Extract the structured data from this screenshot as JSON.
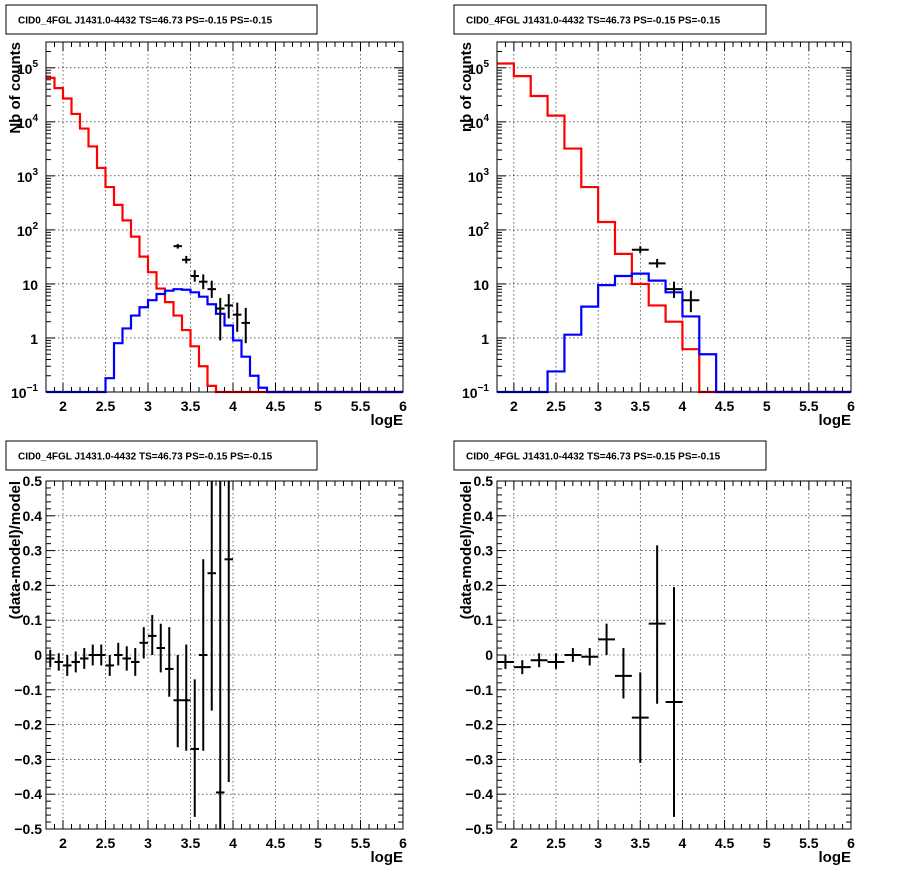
{
  "chart_data": [
    {
      "type": "line",
      "title": "CID0_4FGL J1431.0-4432 TS=46.73 PS=-0.15 PS=-0.15",
      "xlabel": "logE",
      "ylabel": "Nb of counts",
      "xscale": "linear",
      "yscale": "log",
      "xlim": [
        1.8,
        6.0
      ],
      "ylim": [
        0.1,
        300000
      ],
      "grid": true,
      "xticks": [
        {
          "v": 2,
          "label": "2"
        },
        {
          "v": 2.5,
          "label": "2.5"
        },
        {
          "v": 3,
          "label": "3"
        },
        {
          "v": 3.5,
          "label": "3.5"
        },
        {
          "v": 4,
          "label": "4"
        },
        {
          "v": 4.5,
          "label": "4.5"
        },
        {
          "v": 5,
          "label": "5"
        },
        {
          "v": 5.5,
          "label": "5.5"
        },
        {
          "v": 6,
          "label": "6"
        }
      ],
      "yticks": [
        {
          "v": 0.1,
          "base": "10",
          "exp": "−1"
        },
        {
          "v": 1,
          "base": "1",
          "exp": ""
        },
        {
          "v": 10,
          "base": "10",
          "exp": ""
        },
        {
          "v": 100,
          "base": "10",
          "exp": "2"
        },
        {
          "v": 1000,
          "base": "10",
          "exp": "3"
        },
        {
          "v": 10000,
          "base": "10",
          "exp": "4"
        },
        {
          "v": 100000,
          "base": "10",
          "exp": "5"
        }
      ],
      "series": [
        {
          "kind": "step",
          "color": "#ff0000",
          "edges": [
            1.8,
            1.9,
            2.0,
            2.1,
            2.2,
            2.3,
            2.4,
            2.5,
            2.6,
            2.7,
            2.8,
            2.9,
            3.0,
            3.1,
            3.2,
            3.3,
            3.4,
            3.5,
            3.6,
            3.7,
            3.8,
            3.9,
            4.0,
            4.1,
            4.2,
            4.3,
            4.4,
            4.5,
            6.0
          ],
          "values": [
            65000,
            42000,
            27000,
            14000,
            7500,
            3500,
            1400,
            620,
            290,
            150,
            75,
            32,
            16.5,
            8.2,
            4.6,
            2.6,
            1.4,
            0.7,
            0.3,
            0.13,
            0.1,
            0.1,
            0.1,
            0.1,
            0.1,
            0.1,
            0.1,
            0.1
          ]
        },
        {
          "kind": "step",
          "color": "#0000ff",
          "edges": [
            1.8,
            1.9,
            2.0,
            2.1,
            2.2,
            2.3,
            2.4,
            2.5,
            2.6,
            2.7,
            2.8,
            2.9,
            3.0,
            3.1,
            3.2,
            3.3,
            3.4,
            3.5,
            3.6,
            3.7,
            3.8,
            3.9,
            4.0,
            4.1,
            4.2,
            4.3,
            4.4,
            4.5,
            6.0
          ],
          "values": [
            0.1,
            0.1,
            0.1,
            0.1,
            0.1,
            0.1,
            0.1,
            0.18,
            0.8,
            1.5,
            2.6,
            3.7,
            5.0,
            6.5,
            7.5,
            8.0,
            7.8,
            7.0,
            5.8,
            4.2,
            2.8,
            1.7,
            0.9,
            0.45,
            0.2,
            0.12,
            0.1,
            0.1
          ]
        }
      ],
      "points": {
        "color": "#000000",
        "data": [
          {
            "x": 3.35,
            "y": 50,
            "xerr": 0.05,
            "ylo": 45,
            "yhi": 55
          },
          {
            "x": 3.45,
            "y": 28,
            "xerr": 0.05,
            "ylo": 24,
            "yhi": 33
          },
          {
            "x": 3.55,
            "y": 14,
            "xerr": 0.05,
            "ylo": 11,
            "yhi": 18
          },
          {
            "x": 3.65,
            "y": 11,
            "xerr": 0.05,
            "ylo": 8,
            "yhi": 15
          },
          {
            "x": 3.75,
            "y": 8,
            "xerr": 0.05,
            "ylo": 5.5,
            "yhi": 11.5
          },
          {
            "x": 3.85,
            "y": 3.5,
            "xerr": 0.05,
            "ylo": 0.9,
            "yhi": 5.5
          },
          {
            "x": 3.95,
            "y": 4,
            "xerr": 0.05,
            "ylo": 2.3,
            "yhi": 6.5
          },
          {
            "x": 4.05,
            "y": 2.7,
            "xerr": 0.05,
            "ylo": 1.3,
            "yhi": 4.5
          },
          {
            "x": 4.15,
            "y": 1.9,
            "xerr": 0.05,
            "ylo": 0.8,
            "yhi": 3.6
          }
        ]
      }
    },
    {
      "type": "line",
      "title": "CID0_4FGL J1431.0-4432 TS=46.73 PS=-0.15 PS=-0.15",
      "xlabel": "logE",
      "ylabel": "nb of counts",
      "xscale": "linear",
      "yscale": "log",
      "xlim": [
        1.8,
        6.0
      ],
      "ylim": [
        0.1,
        300000
      ],
      "grid": true,
      "xticks": [
        {
          "v": 2,
          "label": "2"
        },
        {
          "v": 2.5,
          "label": "2.5"
        },
        {
          "v": 3,
          "label": "3"
        },
        {
          "v": 3.5,
          "label": "3.5"
        },
        {
          "v": 4,
          "label": "4"
        },
        {
          "v": 4.5,
          "label": "4.5"
        },
        {
          "v": 5,
          "label": "5"
        },
        {
          "v": 5.5,
          "label": "5.5"
        },
        {
          "v": 6,
          "label": "6"
        }
      ],
      "yticks": [
        {
          "v": 0.1,
          "base": "10",
          "exp": "−1"
        },
        {
          "v": 1,
          "base": "1",
          "exp": ""
        },
        {
          "v": 10,
          "base": "10",
          "exp": ""
        },
        {
          "v": 100,
          "base": "10",
          "exp": "2"
        },
        {
          "v": 1000,
          "base": "10",
          "exp": "3"
        },
        {
          "v": 10000,
          "base": "10",
          "exp": "4"
        },
        {
          "v": 100000,
          "base": "10",
          "exp": "5"
        }
      ],
      "series": [
        {
          "kind": "step",
          "color": "#ff0000",
          "edges": [
            1.8,
            2.0,
            2.2,
            2.4,
            2.6,
            2.8,
            3.0,
            3.2,
            3.4,
            3.6,
            3.8,
            4.0,
            4.2,
            4.4,
            4.6,
            6.0
          ],
          "values": [
            120000,
            70000,
            30000,
            13000,
            3200,
            620,
            140,
            36,
            10,
            4,
            2,
            0.62,
            0.1,
            0.1,
            0.1
          ],
          "special_edge": {
            "from": 4.4,
            "to": 4.6,
            "value": 0.62
          }
        },
        {
          "kind": "step",
          "color": "#0000ff",
          "edges": [
            1.8,
            2.0,
            2.2,
            2.4,
            2.6,
            2.8,
            3.0,
            3.2,
            3.4,
            3.6,
            3.8,
            4.0,
            4.2,
            4.4,
            4.6,
            6.0
          ],
          "values": [
            0.1,
            0.1,
            0.1,
            0.24,
            1.15,
            3.8,
            9.5,
            14,
            15.5,
            11.5,
            7,
            2.5,
            0.5,
            0.1,
            0.1
          ]
        }
      ],
      "points": {
        "color": "#000000",
        "data": [
          {
            "x": 3.5,
            "y": 43,
            "xerr": 0.1,
            "ylo": 37,
            "yhi": 50
          },
          {
            "x": 3.7,
            "y": 24,
            "xerr": 0.1,
            "ylo": 20,
            "yhi": 29
          },
          {
            "x": 3.9,
            "y": 8,
            "xerr": 0.1,
            "ylo": 5.5,
            "yhi": 11
          },
          {
            "x": 4.1,
            "y": 5,
            "xerr": 0.1,
            "ylo": 3,
            "yhi": 7.5
          }
        ]
      }
    },
    {
      "type": "scatter",
      "title": "CID0_4FGL J1431.0-4432 TS=46.73 PS=-0.15 PS=-0.15",
      "xlabel": "logE",
      "ylabel": "(data-model)/model",
      "xscale": "linear",
      "yscale": "linear",
      "xlim": [
        1.8,
        6.0
      ],
      "ylim": [
        -0.5,
        0.5
      ],
      "grid": true,
      "xticks": [
        {
          "v": 2,
          "label": "2"
        },
        {
          "v": 2.5,
          "label": "2.5"
        },
        {
          "v": 3,
          "label": "3"
        },
        {
          "v": 3.5,
          "label": "3.5"
        },
        {
          "v": 4,
          "label": "4"
        },
        {
          "v": 4.5,
          "label": "4.5"
        },
        {
          "v": 5,
          "label": "5"
        },
        {
          "v": 5.5,
          "label": "5.5"
        },
        {
          "v": 6,
          "label": "6"
        }
      ],
      "yticks": [
        {
          "v": -0.5,
          "label": "−0.5"
        },
        {
          "v": -0.4,
          "label": "−0.4"
        },
        {
          "v": -0.3,
          "label": "−0.3"
        },
        {
          "v": -0.2,
          "label": "−0.2"
        },
        {
          "v": -0.1,
          "label": "−0.1"
        },
        {
          "v": 0,
          "label": "0"
        },
        {
          "v": 0.1,
          "label": "0.1"
        },
        {
          "v": 0.2,
          "label": "0.2"
        },
        {
          "v": 0.3,
          "label": "0.3"
        },
        {
          "v": 0.4,
          "label": "0.4"
        },
        {
          "v": 0.5,
          "label": "0.5"
        }
      ],
      "points": {
        "color": "#000000",
        "data": [
          {
            "x": 1.85,
            "y": -0.01,
            "xerr": 0.05,
            "ylo": -0.035,
            "yhi": 0.015
          },
          {
            "x": 1.95,
            "y": -0.02,
            "xerr": 0.05,
            "ylo": -0.045,
            "yhi": 0.005
          },
          {
            "x": 2.05,
            "y": -0.03,
            "xerr": 0.05,
            "ylo": -0.06,
            "yhi": 0.0
          },
          {
            "x": 2.15,
            "y": -0.02,
            "xerr": 0.05,
            "ylo": -0.05,
            "yhi": 0.01
          },
          {
            "x": 2.25,
            "y": -0.01,
            "xerr": 0.05,
            "ylo": -0.04,
            "yhi": 0.02
          },
          {
            "x": 2.35,
            "y": 0.0,
            "xerr": 0.05,
            "ylo": -0.03,
            "yhi": 0.03
          },
          {
            "x": 2.45,
            "y": 0.0,
            "xerr": 0.05,
            "ylo": -0.03,
            "yhi": 0.03
          },
          {
            "x": 2.55,
            "y": -0.03,
            "xerr": 0.05,
            "ylo": -0.06,
            "yhi": 0.0
          },
          {
            "x": 2.65,
            "y": 0.0,
            "xerr": 0.05,
            "ylo": -0.03,
            "yhi": 0.035
          },
          {
            "x": 2.75,
            "y": -0.01,
            "xerr": 0.05,
            "ylo": -0.045,
            "yhi": 0.025
          },
          {
            "x": 2.85,
            "y": -0.02,
            "xerr": 0.05,
            "ylo": -0.06,
            "yhi": 0.02
          },
          {
            "x": 2.95,
            "y": 0.035,
            "xerr": 0.05,
            "ylo": -0.01,
            "yhi": 0.08
          },
          {
            "x": 3.05,
            "y": 0.055,
            "xerr": 0.05,
            "ylo": 0.0,
            "yhi": 0.115
          },
          {
            "x": 3.15,
            "y": 0.02,
            "xerr": 0.05,
            "ylo": -0.05,
            "yhi": 0.09
          },
          {
            "x": 3.25,
            "y": -0.04,
            "xerr": 0.05,
            "ylo": -0.12,
            "yhi": 0.08
          },
          {
            "x": 3.35,
            "y": -0.13,
            "xerr": 0.05,
            "ylo": -0.265,
            "yhi": 0.0
          },
          {
            "x": 3.45,
            "y": -0.13,
            "xerr": 0.05,
            "ylo": -0.275,
            "yhi": 0.03
          },
          {
            "x": 3.55,
            "y": -0.27,
            "xerr": 0.05,
            "ylo": -0.465,
            "yhi": -0.07
          },
          {
            "x": 3.65,
            "y": 0.0,
            "xerr": 0.05,
            "ylo": -0.275,
            "yhi": 0.275
          },
          {
            "x": 3.75,
            "y": 0.235,
            "xerr": 0.05,
            "ylo": -0.16,
            "yhi": 0.5
          },
          {
            "x": 3.85,
            "y": -0.395,
            "xerr": 0.05,
            "ylo": -0.5,
            "yhi": 0.5
          },
          {
            "x": 3.95,
            "y": 0.275,
            "xerr": 0.05,
            "ylo": -0.365,
            "yhi": 0.5
          }
        ]
      }
    },
    {
      "type": "scatter",
      "title": "CID0_4FGL J1431.0-4432 TS=46.73 PS=-0.15 PS=-0.15",
      "xlabel": "logE",
      "ylabel": "(data-model)/model",
      "xscale": "linear",
      "yscale": "linear",
      "xlim": [
        1.8,
        6.0
      ],
      "ylim": [
        -0.5,
        0.5
      ],
      "grid": true,
      "xticks": [
        {
          "v": 2,
          "label": "2"
        },
        {
          "v": 2.5,
          "label": "2.5"
        },
        {
          "v": 3,
          "label": "3"
        },
        {
          "v": 3.5,
          "label": "3.5"
        },
        {
          "v": 4,
          "label": "4"
        },
        {
          "v": 4.5,
          "label": "4.5"
        },
        {
          "v": 5,
          "label": "5"
        },
        {
          "v": 5.5,
          "label": "5.5"
        },
        {
          "v": 6,
          "label": "6"
        }
      ],
      "yticks": [
        {
          "v": -0.5,
          "label": "−0.5"
        },
        {
          "v": -0.4,
          "label": "−0.4"
        },
        {
          "v": -0.3,
          "label": "−0.3"
        },
        {
          "v": -0.2,
          "label": "−0.2"
        },
        {
          "v": -0.1,
          "label": "−0.1"
        },
        {
          "v": 0,
          "label": "0"
        },
        {
          "v": 0.1,
          "label": "0.1"
        },
        {
          "v": 0.2,
          "label": "0.2"
        },
        {
          "v": 0.3,
          "label": "0.3"
        },
        {
          "v": 0.4,
          "label": "0.4"
        },
        {
          "v": 0.5,
          "label": "0.5"
        }
      ],
      "points": {
        "color": "#000000",
        "data": [
          {
            "x": 1.9,
            "y": -0.02,
            "xerr": 0.1,
            "ylo": -0.04,
            "yhi": 0.0
          },
          {
            "x": 2.1,
            "y": -0.035,
            "xerr": 0.1,
            "ylo": -0.055,
            "yhi": -0.015
          },
          {
            "x": 2.3,
            "y": -0.015,
            "xerr": 0.1,
            "ylo": -0.035,
            "yhi": 0.005
          },
          {
            "x": 2.5,
            "y": -0.02,
            "xerr": 0.1,
            "ylo": -0.04,
            "yhi": 0.005
          },
          {
            "x": 2.7,
            "y": 0.0,
            "xerr": 0.1,
            "ylo": -0.02,
            "yhi": 0.02
          },
          {
            "x": 2.9,
            "y": -0.005,
            "xerr": 0.1,
            "ylo": -0.03,
            "yhi": 0.02
          },
          {
            "x": 3.1,
            "y": 0.045,
            "xerr": 0.1,
            "ylo": 0.0,
            "yhi": 0.09
          },
          {
            "x": 3.3,
            "y": -0.06,
            "xerr": 0.1,
            "ylo": -0.125,
            "yhi": 0.02
          },
          {
            "x": 3.5,
            "y": -0.18,
            "xerr": 0.1,
            "ylo": -0.31,
            "yhi": -0.05
          },
          {
            "x": 3.7,
            "y": 0.09,
            "xerr": 0.1,
            "ylo": -0.14,
            "yhi": 0.315
          },
          {
            "x": 3.9,
            "y": -0.135,
            "xerr": 0.1,
            "ylo": -0.465,
            "yhi": 0.195
          }
        ]
      }
    }
  ]
}
